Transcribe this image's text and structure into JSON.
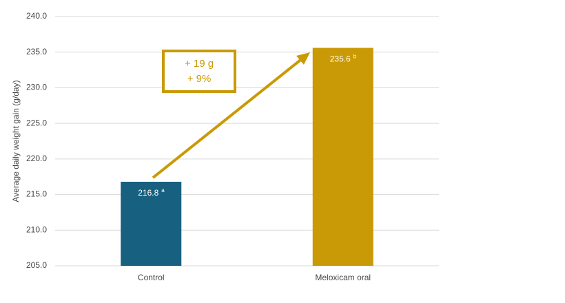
{
  "chart_data": {
    "type": "bar",
    "y_label": "Average daily weight gain (g/day)",
    "categories": [
      "Control",
      "Meloxicam oral"
    ],
    "values": [
      216.8,
      235.6
    ],
    "value_labels": [
      "216.8",
      "235.6"
    ],
    "value_superscripts": [
      "a",
      "b"
    ],
    "colors": [
      "#17607f",
      "#c99a06"
    ],
    "ylim": [
      205,
      240
    ],
    "yticks": [
      {
        "value": 205,
        "label": "205.0"
      },
      {
        "value": 210,
        "label": "210.0"
      },
      {
        "value": 215,
        "label": "215.0"
      },
      {
        "value": 220,
        "label": "220.0"
      },
      {
        "value": 225,
        "label": "225.0"
      },
      {
        "value": 230,
        "label": "230.0"
      },
      {
        "value": 235,
        "label": "235.0"
      },
      {
        "value": 240,
        "label": "240.0"
      }
    ],
    "grid": true,
    "annotations": [
      "+ 19 g",
      "+ 9%"
    ]
  }
}
